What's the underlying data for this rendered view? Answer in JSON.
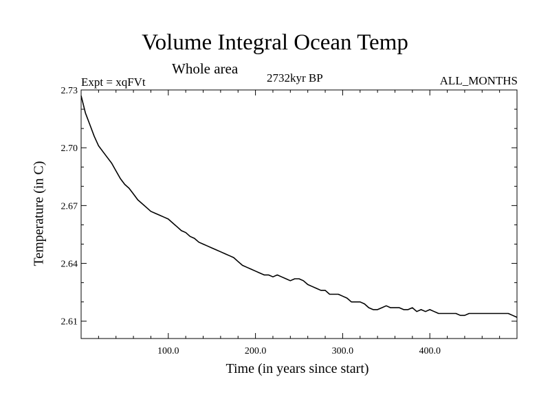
{
  "header": {
    "title": "Volume Integral Ocean Temp",
    "subtitle": "Whole area",
    "experiment": "Expt = xqFVt",
    "period": "2732kyr BP",
    "months": "ALL_MONTHS"
  },
  "chart_data": {
    "type": "line",
    "title": "Volume Integral Ocean Temp",
    "subtitle": "Whole area",
    "xlabel": "Time (in years since start)",
    "ylabel": "Temperature (in C)",
    "xlim": [
      0,
      500
    ],
    "ylim": [
      2.601,
      2.73
    ],
    "x_ticks": [
      100,
      200,
      300,
      400
    ],
    "x_tick_labels": [
      "100.0",
      "200.0",
      "300.0",
      "400.0"
    ],
    "y_ticks": [
      2.61,
      2.64,
      2.67,
      2.7,
      2.73
    ],
    "y_tick_labels": [
      "2.61",
      "2.64",
      "2.67",
      "2.70",
      "2.73"
    ],
    "grid": false,
    "series": [
      {
        "name": "Volume Integral Ocean Temp",
        "x": [
          0,
          5,
          10,
          15,
          20,
          25,
          30,
          35,
          40,
          45,
          50,
          55,
          60,
          65,
          70,
          75,
          80,
          85,
          90,
          95,
          100,
          105,
          110,
          115,
          120,
          125,
          130,
          135,
          140,
          145,
          150,
          155,
          160,
          165,
          170,
          175,
          180,
          185,
          190,
          195,
          200,
          205,
          210,
          215,
          220,
          225,
          230,
          235,
          240,
          245,
          250,
          255,
          260,
          265,
          270,
          275,
          280,
          285,
          290,
          295,
          300,
          305,
          310,
          315,
          320,
          325,
          330,
          335,
          340,
          345,
          350,
          355,
          360,
          365,
          370,
          375,
          380,
          385,
          390,
          395,
          400,
          405,
          410,
          415,
          420,
          425,
          430,
          435,
          440,
          445,
          450,
          455,
          460,
          465,
          470,
          475,
          480,
          485,
          490,
          495,
          500
        ],
        "values": [
          2.727,
          2.718,
          2.712,
          2.706,
          2.701,
          2.698,
          2.695,
          2.692,
          2.688,
          2.684,
          2.681,
          2.679,
          2.676,
          2.673,
          2.671,
          2.669,
          2.667,
          2.666,
          2.665,
          2.664,
          2.663,
          2.661,
          2.659,
          2.657,
          2.656,
          2.654,
          2.653,
          2.651,
          2.65,
          2.649,
          2.648,
          2.647,
          2.646,
          2.645,
          2.644,
          2.643,
          2.641,
          2.639,
          2.638,
          2.637,
          2.636,
          2.635,
          2.634,
          2.634,
          2.633,
          2.634,
          2.633,
          2.632,
          2.631,
          2.632,
          2.632,
          2.631,
          2.629,
          2.628,
          2.627,
          2.626,
          2.626,
          2.624,
          2.624,
          2.624,
          2.623,
          2.622,
          2.62,
          2.62,
          2.62,
          2.619,
          2.617,
          2.616,
          2.616,
          2.617,
          2.618,
          2.617,
          2.617,
          2.617,
          2.616,
          2.616,
          2.617,
          2.615,
          2.616,
          2.615,
          2.616,
          2.615,
          2.614,
          2.614,
          2.614,
          2.614,
          2.614,
          2.613,
          2.613,
          2.614,
          2.614,
          2.614,
          2.614,
          2.614,
          2.614,
          2.614,
          2.614,
          2.614,
          2.614,
          2.613,
          2.612
        ]
      }
    ]
  }
}
